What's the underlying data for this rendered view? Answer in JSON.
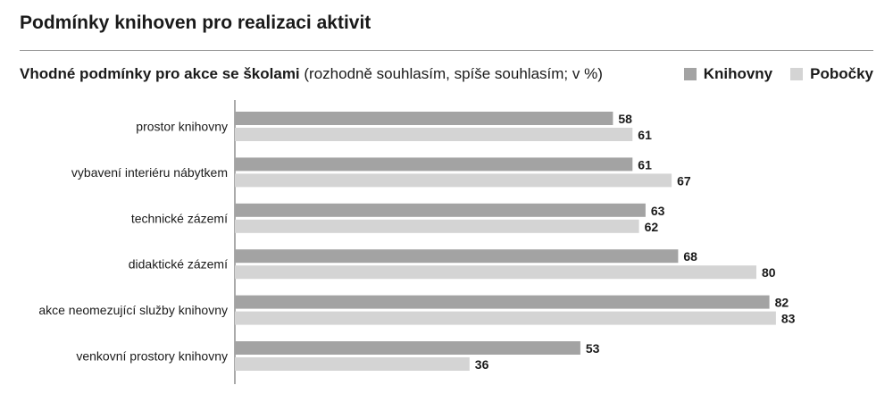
{
  "header": {
    "title": "Podmínky knihoven pro realizaci aktivit",
    "subtitle_bold": "Vhodné podmínky pro akce se školami",
    "subtitle_rest": " (rozhodně souhlasím, spíše souhlasím; v %)"
  },
  "legend": [
    {
      "label": "Knihovny",
      "color": "#a3a3a3"
    },
    {
      "label": "Pobočky",
      "color": "#d4d4d4"
    }
  ],
  "chart_data": {
    "type": "bar",
    "orientation": "horizontal",
    "title": "Podmínky knihoven pro realizaci aktivit",
    "subtitle": "Vhodné podmínky pro akce se školami (rozhodně souhlasím, spíše souhlasím; v %)",
    "categories": [
      "prostor knihovny",
      "vybavení interiéru nábytkem",
      "technické zázemí",
      "didaktické zázemí",
      "akce neomezující služby knihovny",
      "venkovní prostory knihovny"
    ],
    "series": [
      {
        "name": "Knihovny",
        "color": "#a3a3a3",
        "values": [
          58,
          61,
          63,
          68,
          82,
          53
        ]
      },
      {
        "name": "Pobočky",
        "color": "#d4d4d4",
        "values": [
          61,
          67,
          62,
          80,
          83,
          36
        ]
      }
    ],
    "xlim": [
      0,
      100
    ],
    "grid": false,
    "legend_position": "top-right"
  }
}
